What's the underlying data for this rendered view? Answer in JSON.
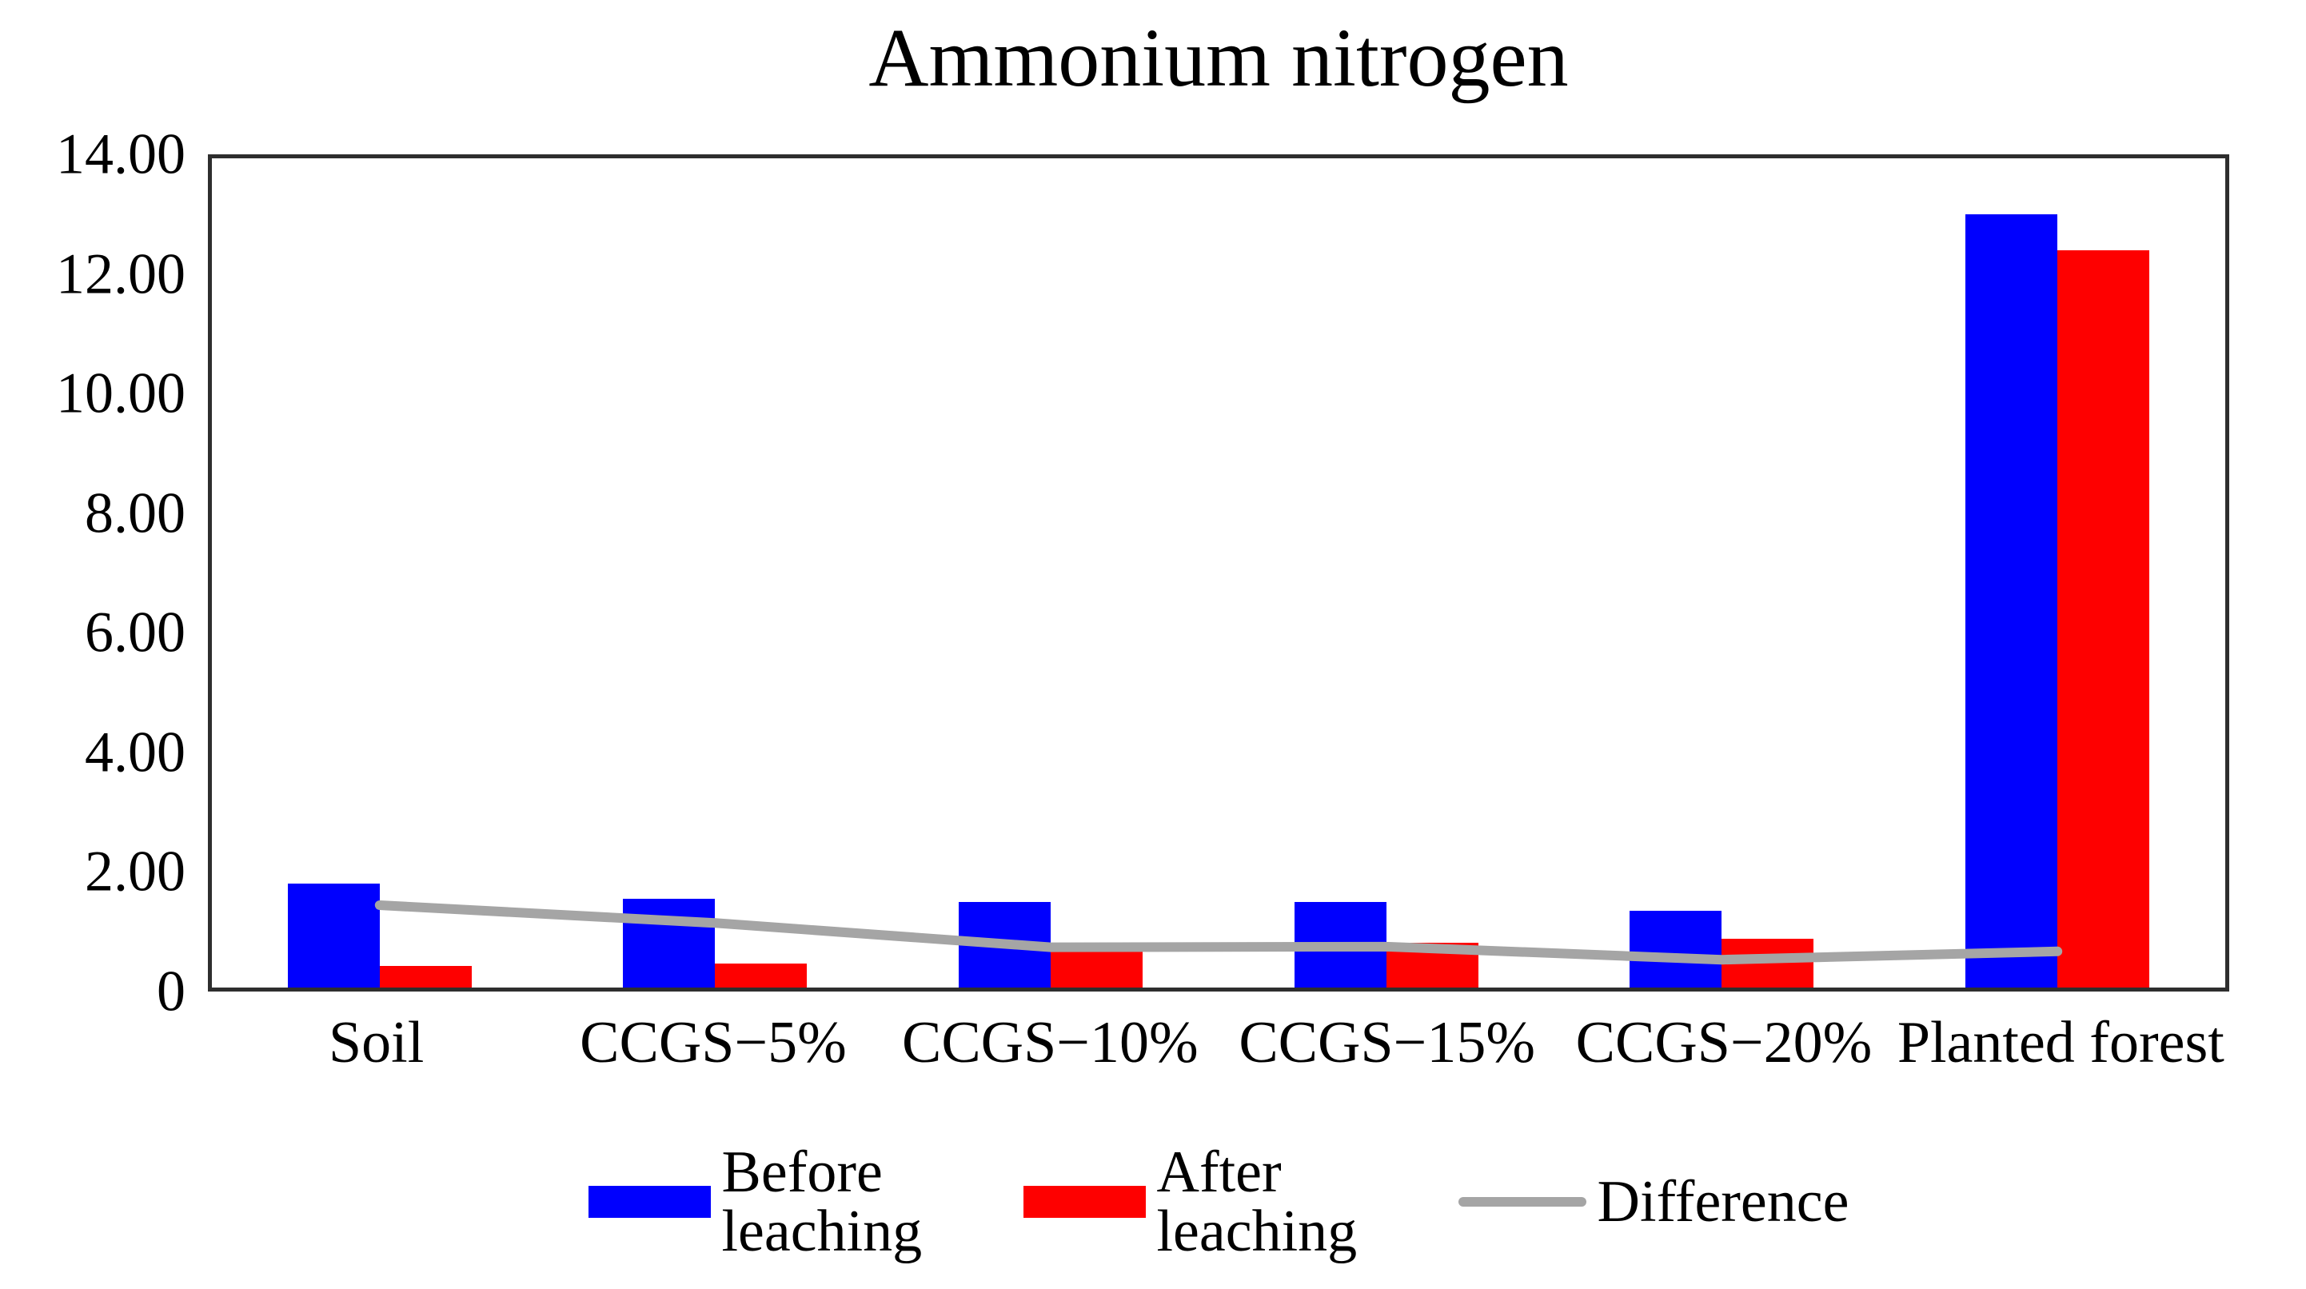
{
  "chart_data": {
    "type": "bar+line combo",
    "title": "Ammonium nitrogen",
    "categories": [
      "Soil",
      "CCGS−5%",
      "CCGS−10%",
      "CCGS−15%",
      "CCGS−20%",
      "Planted forest"
    ],
    "series": [
      {
        "name": "Before leaching",
        "type": "bar",
        "color": "#0000fe",
        "values": [
          1.75,
          1.5,
          1.44,
          1.45,
          1.3,
          13.06
        ]
      },
      {
        "name": "After leaching",
        "type": "bar",
        "color": "#fe0000",
        "values": [
          0.36,
          0.41,
          0.76,
          0.76,
          0.83,
          12.45
        ]
      },
      {
        "name": "Difference",
        "type": "line",
        "color": "#a5a5a5",
        "values": [
          1.39,
          1.09,
          0.68,
          0.69,
          0.47,
          0.61
        ]
      }
    ],
    "ylim": [
      0,
      14
    ],
    "y_tick_values": [
      14,
      12,
      10,
      8,
      6,
      4,
      2,
      0
    ],
    "y_tick_labels": [
      "14.00",
      "12.00",
      "10.00",
      "8.00",
      "6.00",
      "4.00",
      "2.00",
      "0"
    ],
    "xlabel": "",
    "ylabel": "",
    "grid": false,
    "legend_position": "bottom",
    "plot_border_color": "#2e2e2e",
    "background_color": "#ffffff"
  }
}
